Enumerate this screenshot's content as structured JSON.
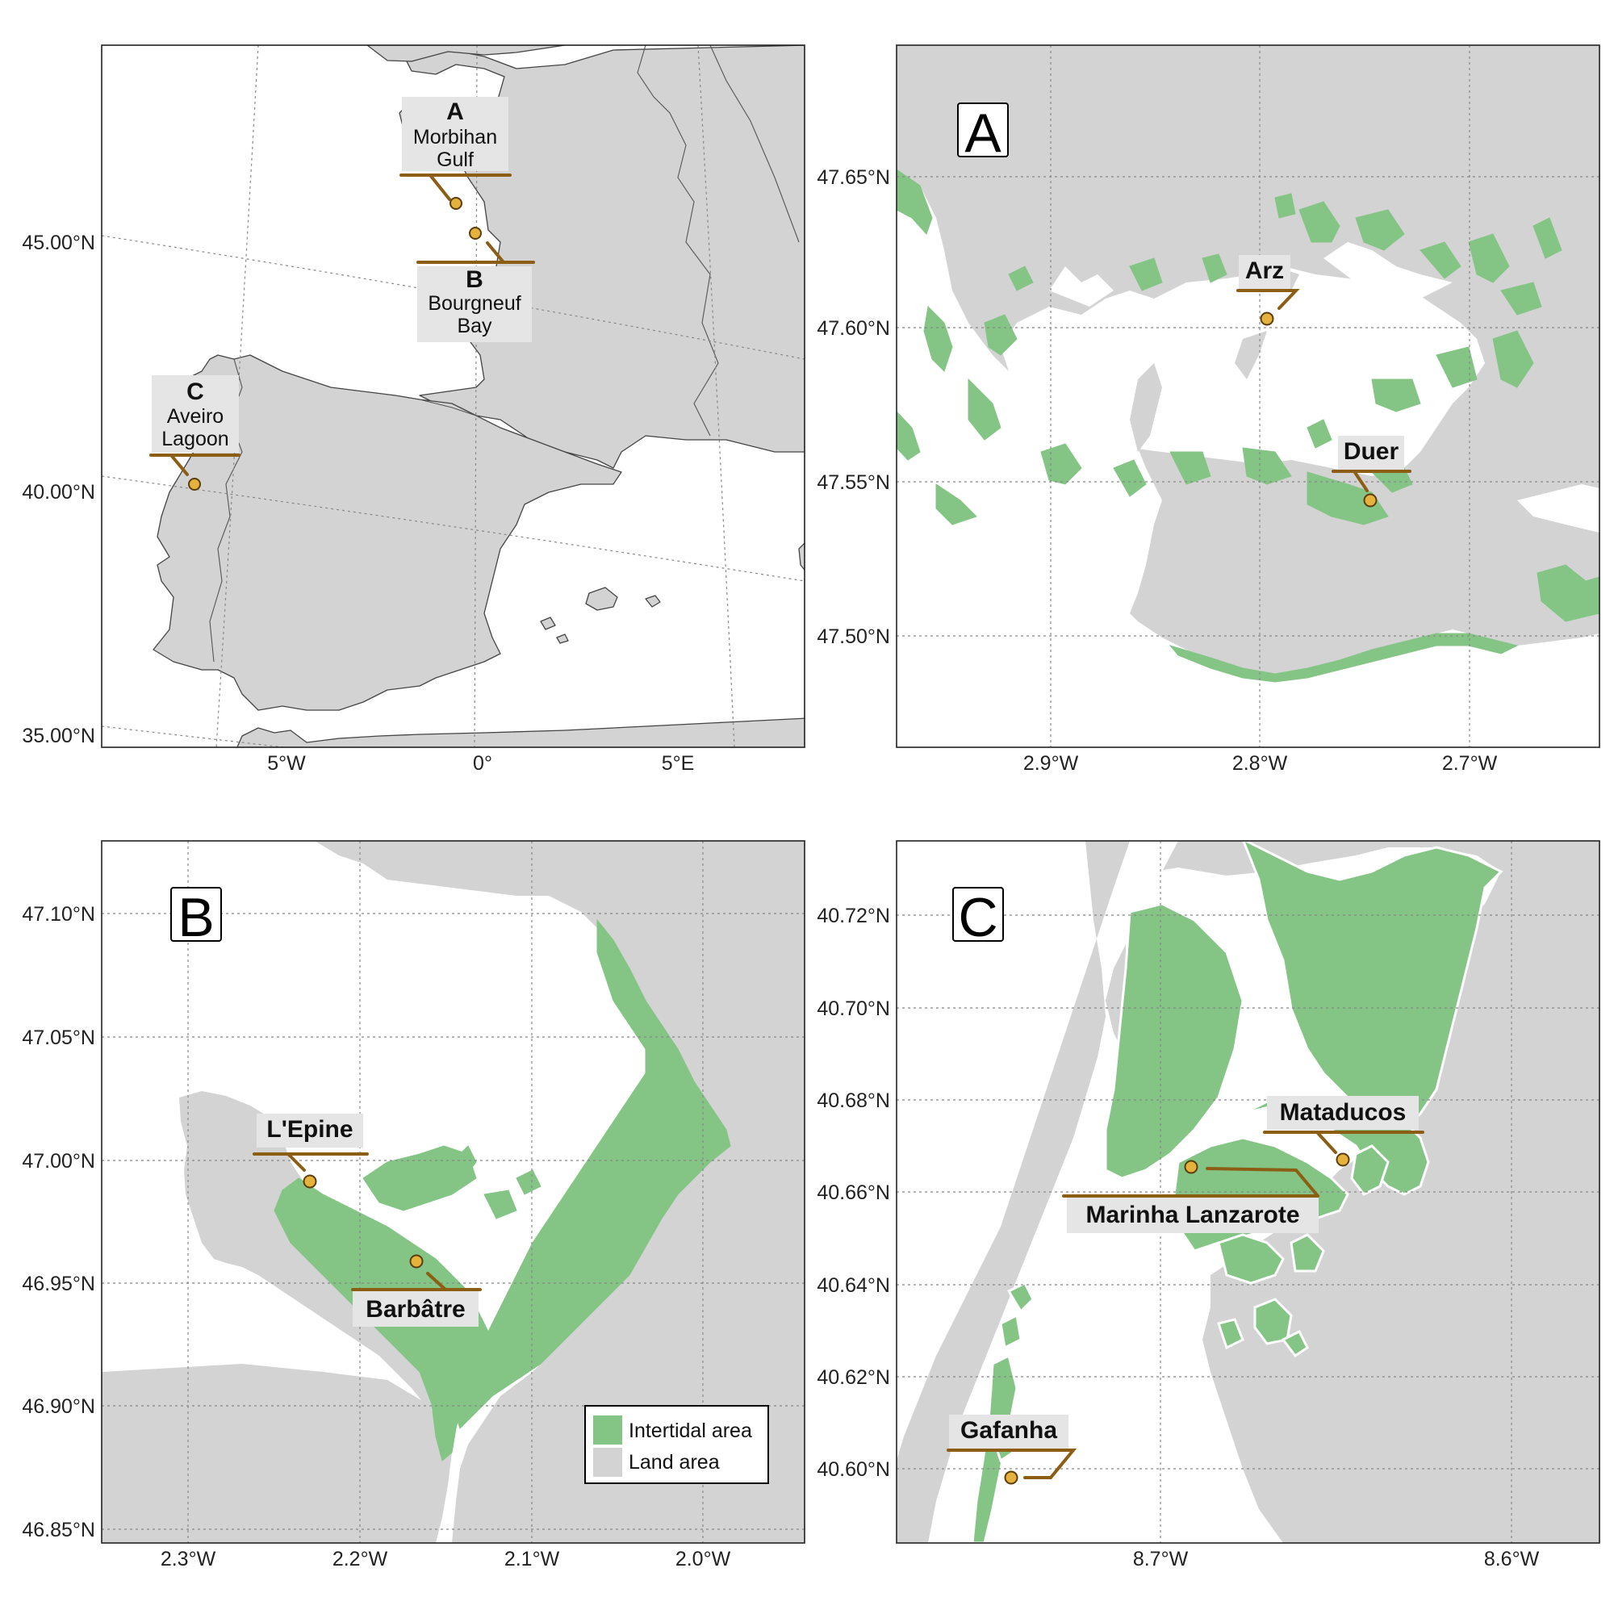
{
  "overview": {
    "lat_ticks": [
      "45.00°N",
      "40.00°N",
      "35.00°N"
    ],
    "lon_ticks": [
      "5°W",
      "0°",
      "5°E"
    ],
    "sites": [
      {
        "letter": "A",
        "name_line1": "Morbihan",
        "name_line2": "Gulf"
      },
      {
        "letter": "B",
        "name_line1": "Bourgneuf",
        "name_line2": "Bay"
      },
      {
        "letter": "C",
        "name_line1": "Aveiro",
        "name_line2": "Lagoon"
      }
    ]
  },
  "panel_a": {
    "letter": "A",
    "lat_ticks": [
      "47.65°N",
      "47.60°N",
      "47.55°N",
      "47.50°N"
    ],
    "lon_ticks": [
      "2.9°W",
      "2.8°W",
      "2.7°W"
    ],
    "sites": [
      "Arz",
      "Duer"
    ]
  },
  "panel_b": {
    "letter": "B",
    "lat_ticks": [
      "47.10°N",
      "47.05°N",
      "47.00°N",
      "46.95°N",
      "46.90°N",
      "46.85°N"
    ],
    "lon_ticks": [
      "2.3°W",
      "2.2°W",
      "2.1°W",
      "2.0°W"
    ],
    "sites": [
      "L'Epine",
      "Barbâtre"
    ]
  },
  "panel_c": {
    "letter": "C",
    "lat_ticks": [
      "40.72°N",
      "40.70°N",
      "40.68°N",
      "40.66°N",
      "40.64°N",
      "40.62°N",
      "40.60°N"
    ],
    "lon_ticks": [
      "8.7°W",
      "8.6°W"
    ],
    "sites": [
      "Mataducos",
      "Marinha Lanzarote",
      "Gafanha"
    ]
  },
  "legend": {
    "items": [
      {
        "label": "Intertidal area",
        "color": "#84c586"
      },
      {
        "label": "Land area",
        "color": "#d3d3d3"
      }
    ]
  },
  "colors": {
    "intertidal": "#84c586",
    "land": "#d3d3d3",
    "leader": "#8b5e14",
    "site_marker": "#e4b23d"
  }
}
